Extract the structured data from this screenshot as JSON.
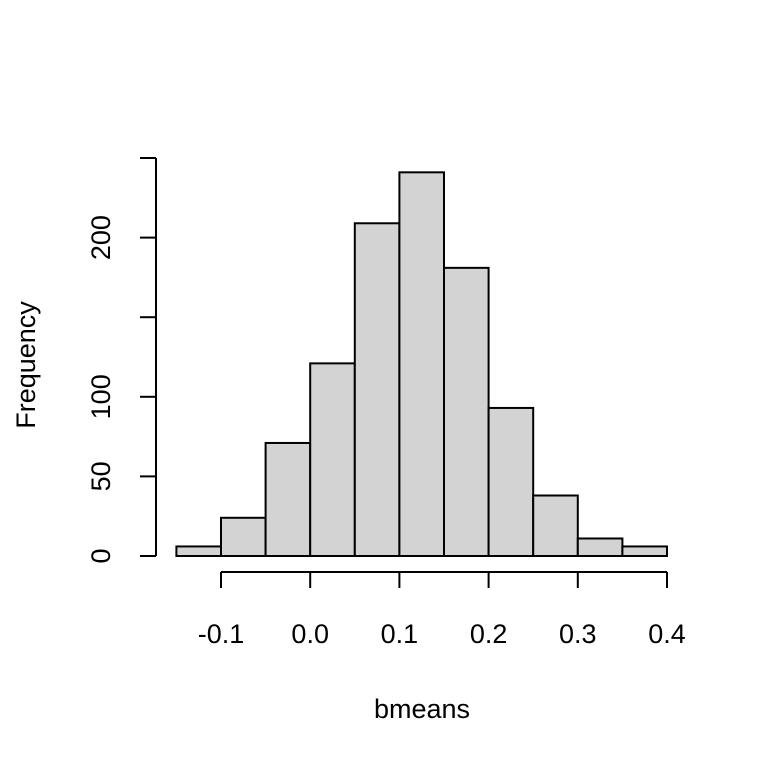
{
  "chart_data": {
    "type": "bar",
    "xlabel": "bmeans",
    "ylabel": "Frequency",
    "bin_edges": [
      -0.15,
      -0.1,
      -0.05,
      0.0,
      0.05,
      0.1,
      0.15,
      0.2,
      0.25,
      0.3,
      0.35,
      0.4
    ],
    "values": [
      6,
      24,
      71,
      121,
      209,
      241,
      181,
      93,
      38,
      11,
      6
    ],
    "x_ticks": [
      -0.1,
      0.0,
      0.1,
      0.2,
      0.3,
      0.4
    ],
    "x_tick_labels": [
      "-0.1",
      "0.0",
      "0.1",
      "0.2",
      "0.3",
      "0.4"
    ],
    "y_ticks": [
      0,
      50,
      100,
      150,
      200,
      250
    ],
    "y_tick_labels": [
      "0",
      "50",
      "100",
      "",
      "200",
      ""
    ],
    "xlim": [
      -0.1,
      0.4
    ],
    "ylim": [
      0,
      250
    ],
    "grid": false,
    "colors": {
      "bar_fill": "#d3d3d3",
      "bar_stroke": "#000000"
    }
  }
}
